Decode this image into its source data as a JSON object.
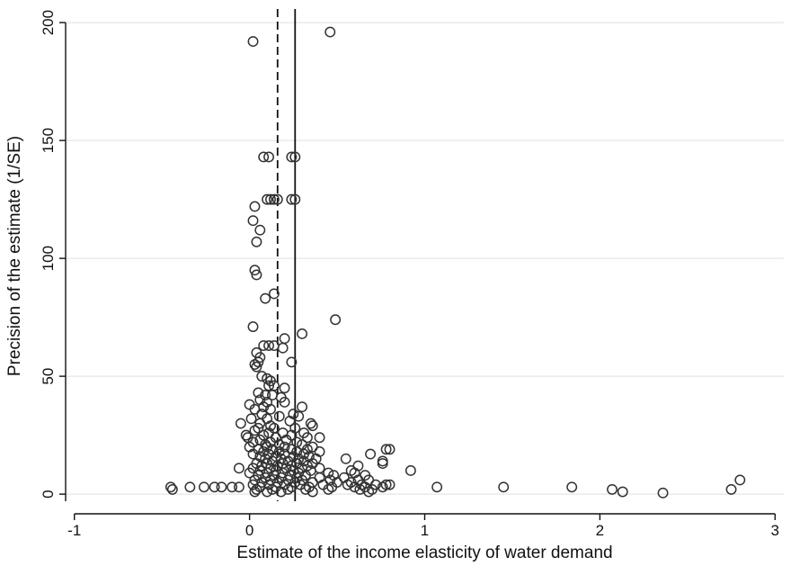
{
  "chart_data": {
    "type": "scatter",
    "title": "",
    "xlabel": "Estimate of the income elasticity of water demand",
    "ylabel": "Precision of the estimate (1/SE)",
    "xlim": [
      -1.05,
      3.05
    ],
    "ylim": [
      -3,
      205
    ],
    "xticks": [
      -1,
      0,
      1,
      2,
      3
    ],
    "xtick_labels": [
      "-1",
      "0",
      "1",
      "2",
      "3"
    ],
    "yticks": [
      0,
      50,
      100,
      150,
      200
    ],
    "ytick_labels": [
      "0",
      "50",
      "100",
      "150",
      "200"
    ],
    "grid": "horizontal",
    "legend": "none",
    "marker": "hollow-circle",
    "colors": {
      "marker": "#333333",
      "grid": "#e6e6e6",
      "axis": "#111111",
      "reference_lines": "#111111"
    },
    "reference_lines": [
      {
        "style": "dashed",
        "x": 0.16
      },
      {
        "style": "solid",
        "x": 0.26
      }
    ],
    "points": [
      [
        0.02,
        192
      ],
      [
        0.46,
        196
      ],
      [
        0.08,
        143
      ],
      [
        0.11,
        143
      ],
      [
        0.24,
        143
      ],
      [
        0.26,
        143
      ],
      [
        0.1,
        125
      ],
      [
        0.12,
        125
      ],
      [
        0.14,
        125
      ],
      [
        0.16,
        125
      ],
      [
        0.24,
        125
      ],
      [
        0.26,
        125
      ],
      [
        0.03,
        122
      ],
      [
        0.02,
        116
      ],
      [
        0.06,
        112
      ],
      [
        0.04,
        107
      ],
      [
        0.03,
        95
      ],
      [
        0.04,
        93
      ],
      [
        0.14,
        85
      ],
      [
        0.09,
        83
      ],
      [
        0.49,
        74
      ],
      [
        0.02,
        71
      ],
      [
        0.3,
        68
      ],
      [
        0.2,
        66
      ],
      [
        0.08,
        63
      ],
      [
        0.11,
        63
      ],
      [
        0.14,
        63
      ],
      [
        0.19,
        62
      ],
      [
        0.04,
        60
      ],
      [
        0.06,
        58
      ],
      [
        0.05,
        56
      ],
      [
        0.24,
        56
      ],
      [
        0.03,
        55
      ],
      [
        0.04,
        54
      ],
      [
        0.07,
        50
      ],
      [
        0.1,
        49
      ],
      [
        0.12,
        48
      ],
      [
        0.11,
        46
      ],
      [
        0.14,
        46
      ],
      [
        0.2,
        45
      ],
      [
        0.05,
        43
      ],
      [
        0.09,
        42
      ],
      [
        0.13,
        42
      ],
      [
        0.18,
        41
      ],
      [
        0.06,
        40
      ],
      [
        0.2,
        39
      ],
      [
        0.1,
        39
      ],
      [
        0.0,
        38
      ],
      [
        0.08,
        37
      ],
      [
        0.3,
        37
      ],
      [
        0.03,
        36
      ],
      [
        0.12,
        36
      ],
      [
        0.25,
        34
      ],
      [
        0.07,
        34
      ],
      [
        0.17,
        33
      ],
      [
        0.28,
        33
      ],
      [
        0.01,
        32
      ],
      [
        0.1,
        32
      ],
      [
        0.23,
        31
      ],
      [
        0.35,
        30
      ],
      [
        -0.05,
        30
      ],
      [
        0.06,
        30
      ],
      [
        0.36,
        29
      ],
      [
        0.12,
        29
      ],
      [
        0.05,
        28
      ],
      [
        0.14,
        28
      ],
      [
        0.26,
        28
      ],
      [
        0.03,
        27
      ],
      [
        0.11,
        26
      ],
      [
        0.19,
        26
      ],
      [
        0.31,
        26
      ],
      [
        0.08,
        25
      ],
      [
        0.24,
        25
      ],
      [
        -0.02,
        25
      ],
      [
        0.33,
        24
      ],
      [
        -0.01,
        24
      ],
      [
        0.15,
        24
      ],
      [
        0.4,
        24
      ],
      [
        0.06,
        23
      ],
      [
        0.21,
        23
      ],
      [
        0.02,
        22
      ],
      [
        0.12,
        22
      ],
      [
        0.27,
        22
      ],
      [
        0.09,
        21
      ],
      [
        0.17,
        21
      ],
      [
        0.3,
        21
      ],
      [
        0.0,
        20
      ],
      [
        0.1,
        20
      ],
      [
        0.2,
        20
      ],
      [
        0.36,
        20
      ],
      [
        0.05,
        19
      ],
      [
        0.13,
        19
      ],
      [
        0.24,
        19
      ],
      [
        0.33,
        19
      ],
      [
        0.78,
        19
      ],
      [
        0.8,
        19
      ],
      [
        0.08,
        18
      ],
      [
        0.17,
        18
      ],
      [
        0.27,
        18
      ],
      [
        0.4,
        18
      ],
      [
        0.02,
        17
      ],
      [
        0.11,
        17
      ],
      [
        0.2,
        17
      ],
      [
        0.31,
        17
      ],
      [
        0.69,
        17
      ],
      [
        0.06,
        16
      ],
      [
        0.15,
        16
      ],
      [
        0.25,
        16
      ],
      [
        0.34,
        16
      ],
      [
        0.09,
        15
      ],
      [
        0.18,
        15
      ],
      [
        0.28,
        15
      ],
      [
        0.38,
        15
      ],
      [
        0.55,
        15
      ],
      [
        0.13,
        14
      ],
      [
        0.22,
        14
      ],
      [
        0.31,
        14
      ],
      [
        0.76,
        14
      ],
      [
        0.04,
        13
      ],
      [
        0.1,
        13
      ],
      [
        0.19,
        13
      ],
      [
        0.27,
        13
      ],
      [
        0.36,
        13
      ],
      [
        0.76,
        13
      ],
      [
        0.07,
        12
      ],
      [
        0.16,
        12
      ],
      [
        0.24,
        12
      ],
      [
        0.33,
        12
      ],
      [
        0.62,
        12
      ],
      [
        0.02,
        11
      ],
      [
        0.12,
        11
      ],
      [
        0.21,
        11
      ],
      [
        0.3,
        11
      ],
      [
        0.4,
        11
      ],
      [
        -0.06,
        11
      ],
      [
        0.92,
        10
      ],
      [
        0.06,
        10
      ],
      [
        0.15,
        10
      ],
      [
        0.25,
        10
      ],
      [
        0.35,
        10
      ],
      [
        0.58,
        10
      ],
      [
        0.1,
        9
      ],
      [
        0.19,
        9
      ],
      [
        0.28,
        9
      ],
      [
        0.45,
        9
      ],
      [
        0.0,
        9
      ],
      [
        0.6,
        9
      ],
      [
        0.05,
        8
      ],
      [
        0.14,
        8
      ],
      [
        0.23,
        8
      ],
      [
        0.32,
        8
      ],
      [
        0.48,
        8
      ],
      [
        0.66,
        8
      ],
      [
        0.09,
        7
      ],
      [
        0.18,
        7
      ],
      [
        0.27,
        7
      ],
      [
        0.4,
        7
      ],
      [
        0.54,
        7
      ],
      [
        0.03,
        6
      ],
      [
        0.12,
        6
      ],
      [
        0.22,
        6
      ],
      [
        0.3,
        6
      ],
      [
        0.46,
        6
      ],
      [
        0.62,
        6
      ],
      [
        0.68,
        6
      ],
      [
        2.8,
        6
      ],
      [
        0.07,
        5
      ],
      [
        0.16,
        5
      ],
      [
        0.26,
        5
      ],
      [
        0.36,
        5
      ],
      [
        0.5,
        5
      ],
      [
        0.58,
        5
      ],
      [
        0.02,
        4
      ],
      [
        0.11,
        4
      ],
      [
        0.2,
        4
      ],
      [
        0.29,
        4
      ],
      [
        0.42,
        4
      ],
      [
        0.56,
        4
      ],
      [
        0.64,
        4
      ],
      [
        0.72,
        4
      ],
      [
        0.78,
        4
      ],
      [
        0.8,
        4
      ],
      [
        -0.45,
        3
      ],
      [
        -0.34,
        3
      ],
      [
        -0.26,
        3
      ],
      [
        -0.2,
        3
      ],
      [
        -0.16,
        3
      ],
      [
        -0.1,
        3
      ],
      [
        -0.06,
        3
      ],
      [
        0.06,
        3
      ],
      [
        0.15,
        3
      ],
      [
        0.24,
        3
      ],
      [
        0.34,
        3
      ],
      [
        0.47,
        3
      ],
      [
        0.6,
        3
      ],
      [
        0.66,
        3
      ],
      [
        0.76,
        3
      ],
      [
        1.07,
        3
      ],
      [
        1.45,
        3
      ],
      [
        1.84,
        3
      ],
      [
        -0.44,
        2
      ],
      [
        0.04,
        2
      ],
      [
        0.13,
        2
      ],
      [
        0.22,
        2
      ],
      [
        0.32,
        2
      ],
      [
        0.45,
        2
      ],
      [
        0.63,
        2
      ],
      [
        0.7,
        2
      ],
      [
        2.07,
        2
      ],
      [
        2.75,
        2
      ],
      [
        0.03,
        1
      ],
      [
        0.1,
        1
      ],
      [
        0.18,
        1
      ],
      [
        0.36,
        1
      ],
      [
        0.68,
        1
      ],
      [
        2.13,
        1
      ],
      [
        2.36,
        0.5
      ]
    ]
  }
}
